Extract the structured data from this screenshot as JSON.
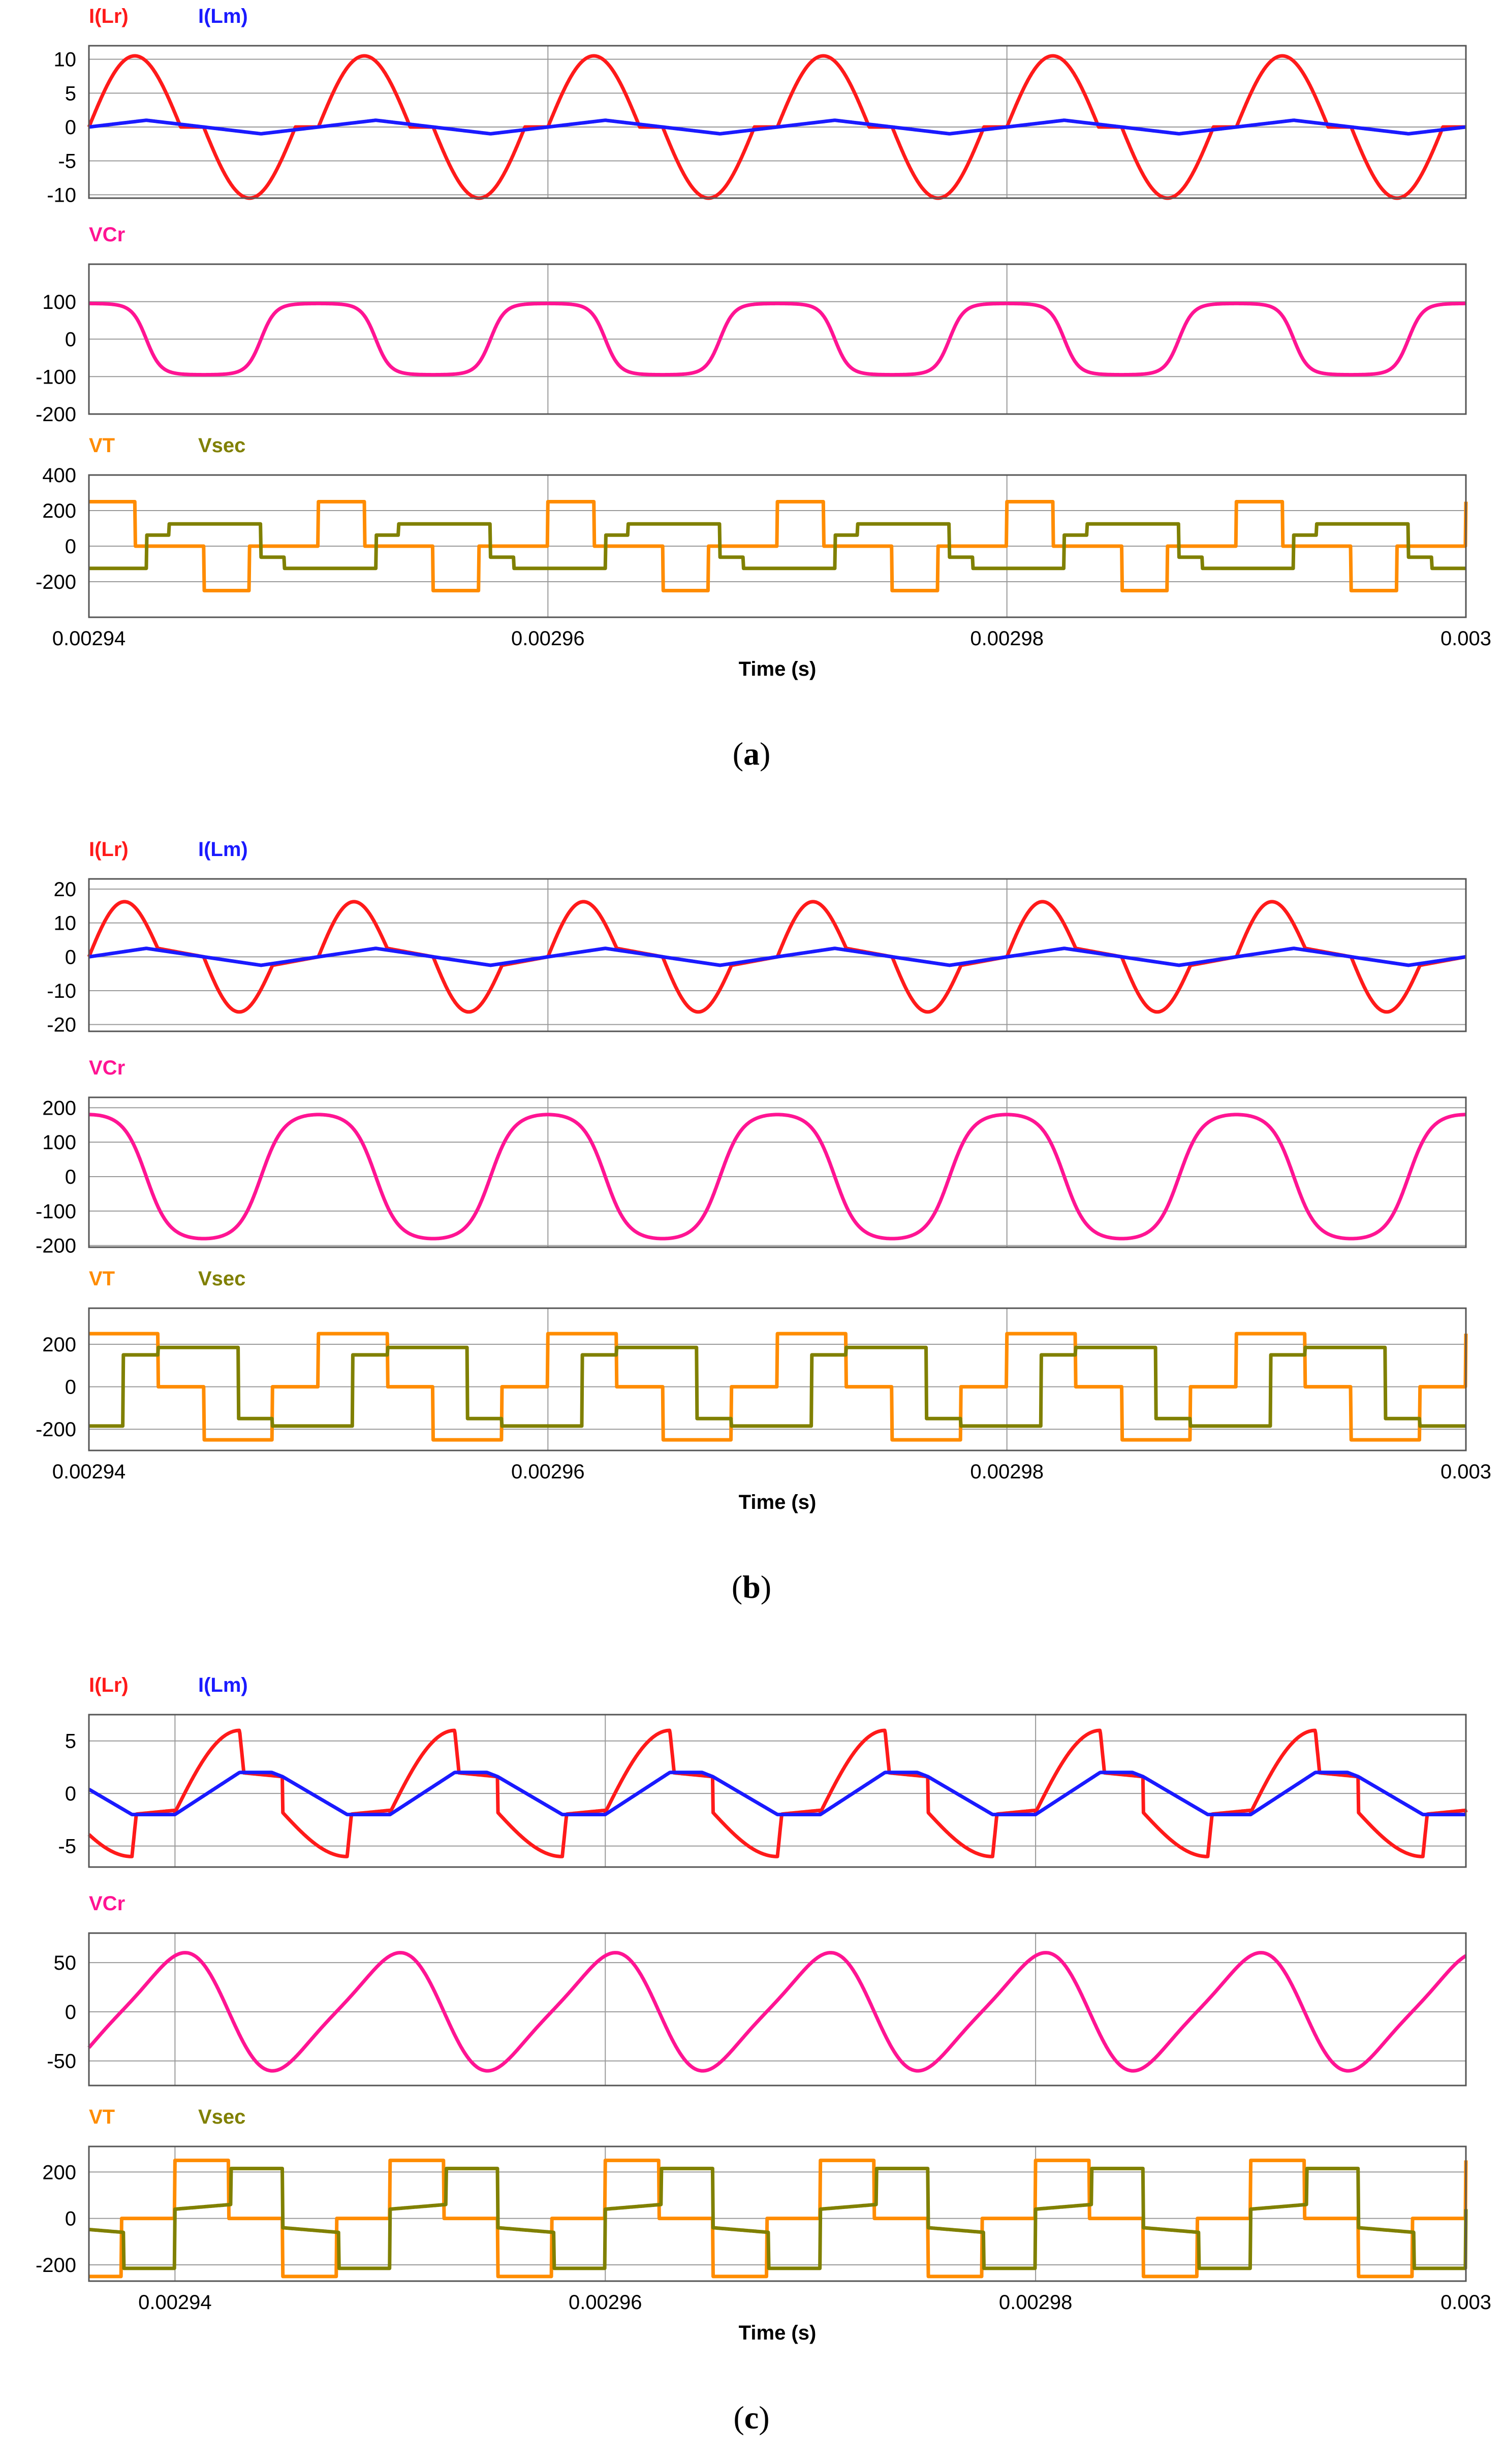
{
  "colors": {
    "I(Lr)": "#ff1a1a",
    "I(Lm)": "#1a1aff",
    "VCr": "#ff1493",
    "VT": "#ff8c00",
    "Vsec": "#808000",
    "grid": "#9a9a9a",
    "frame": "#555555"
  },
  "chart_data": [
    {
      "caption_open": "(",
      "caption_letter": "a",
      "caption_close": ")",
      "type": "line",
      "xlabel": "Time (s)",
      "xlim": [
        0.00294,
        0.003
      ],
      "xticks": [
        0.00294,
        0.00296,
        0.00298,
        0.003
      ],
      "xtick_labels": [
        "0.00294",
        "0.00296",
        "0.00298",
        "0.003"
      ],
      "period": 1e-05,
      "subplots": [
        {
          "legend": [
            "I(Lr)",
            "I(Lm)"
          ],
          "ylim": [
            -10.5,
            12
          ],
          "yticks": [
            10,
            5,
            0,
            -5,
            -10
          ],
          "ytick_labels": [
            "10",
            "5",
            "0",
            "-5",
            "-10"
          ],
          "series": [
            {
              "name": "I(Lr)",
              "phase": 0,
              "shape": "sin_gap",
              "amp": 10.5,
              "duty": 0.8
            },
            {
              "name": "I(Lm)",
              "phase": 0,
              "shape": "tri",
              "amp": 1
            }
          ]
        },
        {
          "legend": [
            "VCr"
          ],
          "ylim": [
            -200,
            200
          ],
          "yticks": [
            100,
            0,
            -100,
            -200
          ],
          "ytick_labels": [
            "100",
            "0",
            "-100",
            "-200"
          ],
          "series": [
            {
              "name": "VCr",
              "phase": 0,
              "shape": "soft_cos",
              "amp": 95,
              "k": 2.5
            }
          ]
        },
        {
          "legend": [
            "VT",
            "Vsec"
          ],
          "ylim": [
            -400,
            400
          ],
          "yticks": [
            400,
            200,
            0,
            -200
          ],
          "ytick_labels": [
            "400",
            "200",
            "0",
            "-200"
          ],
          "series": [
            {
              "name": "VT",
              "phase": 0,
              "shape": "qsq",
              "amp": 250,
              "on": 0.2
            },
            {
              "name": "Vsec",
              "phase": 0.5,
              "shape": "stair",
              "amp": 125,
              "mid": 62,
              "cuts": [
                0.25,
                0.35
              ]
            }
          ]
        }
      ]
    },
    {
      "caption_open": "(",
      "caption_letter": "b",
      "caption_close": ")",
      "type": "line",
      "xlabel": "Time (s)",
      "xlim": [
        0.00294,
        0.003
      ],
      "xticks": [
        0.00294,
        0.00296,
        0.00298,
        0.003
      ],
      "xtick_labels": [
        "0.00294",
        "0.00296",
        "0.00298",
        "0.003"
      ],
      "period": 1e-05,
      "subplots": [
        {
          "legend": [
            "I(Lr)",
            "I(Lm)"
          ],
          "ylim": [
            -22,
            23
          ],
          "yticks": [
            20,
            10,
            0,
            -10,
            -20
          ],
          "ytick_labels": [
            "20",
            "10",
            "0",
            "-10",
            "-20"
          ],
          "series": [
            {
              "name": "I(Lr)",
              "phase": 0,
              "shape": "sin_ramp",
              "amp": 15,
              "duty": 0.6,
              "end": 2.5
            },
            {
              "name": "I(Lm)",
              "phase": 0,
              "shape": "tri",
              "amp": 2.5
            }
          ]
        },
        {
          "legend": [
            "VCr"
          ],
          "ylim": [
            -205,
            230
          ],
          "yticks": [
            200,
            100,
            0,
            -100,
            -200
          ],
          "ytick_labels": [
            "200",
            "100",
            "0",
            "-100",
            "-200"
          ],
          "series": [
            {
              "name": "VCr",
              "phase": 0,
              "shape": "soft_cos",
              "amp": 180,
              "k": 1.5
            }
          ]
        },
        {
          "legend": [
            "VT",
            "Vsec"
          ],
          "ylim": [
            -300,
            370
          ],
          "yticks": [
            200,
            0,
            -200
          ],
          "ytick_labels": [
            "200",
            "0",
            "-200"
          ],
          "series": [
            {
              "name": "VT",
              "phase": 0,
              "shape": "qsq",
              "amp": 250,
              "on": 0.3
            },
            {
              "name": "Vsec",
              "phase": 0.5,
              "shape": "stair",
              "amp": 185,
              "mid": 150,
              "cuts": [
                0.15,
                0.3
              ]
            }
          ]
        }
      ]
    },
    {
      "caption_open": "(",
      "caption_letter": "c",
      "caption_close": ")",
      "type": "line",
      "xlabel": "Time (s)",
      "xlim": [
        0.002936,
        0.003
      ],
      "xticks": [
        0.00294,
        0.00296,
        0.00298,
        0.003
      ],
      "xtick_labels": [
        "0.00294",
        "0.00296",
        "0.00298",
        "0.003"
      ],
      "period": 1e-05,
      "subplots": [
        {
          "legend": [
            "I(Lr)",
            "I(Lm)"
          ],
          "ylim": [
            -7,
            7.5
          ],
          "yticks": [
            5,
            0,
            -5
          ],
          "ytick_labels": [
            "5",
            "0",
            "-5"
          ],
          "series": [
            {
              "name": "I(Lr)",
              "phase": 0,
              "shape": "sin_ramp_c",
              "amp": 6,
              "start": -1.8,
              "peakAt": 0.3,
              "flat": 0.5
            },
            {
              "name": "I(Lm)",
              "phase": 0,
              "shape": "trap",
              "amp": 2,
              "rise": 0.3,
              "hold": 0.15
            }
          ]
        },
        {
          "legend": [
            "VCr"
          ],
          "ylim": [
            -75,
            80
          ],
          "yticks": [
            50,
            0,
            -50
          ],
          "ytick_labels": [
            "50",
            "0",
            "-50"
          ],
          "series": [
            {
              "name": "VCr",
              "phase": 0,
              "shape": "asym",
              "amp": 67
            }
          ]
        },
        {
          "legend": [
            "VT",
            "Vsec"
          ],
          "ylim": [
            -270,
            310
          ],
          "yticks": [
            200,
            0,
            -200
          ],
          "ytick_labels": [
            "200",
            "0",
            "-200"
          ],
          "series": [
            {
              "name": "VT",
              "phase": 0,
              "shape": "qsq",
              "amp": 250,
              "on": 0.25
            },
            {
              "name": "Vsec",
              "phase": 0.02,
              "shape": "stair_c",
              "amp": 215,
              "mid": 40
            }
          ]
        }
      ]
    }
  ]
}
